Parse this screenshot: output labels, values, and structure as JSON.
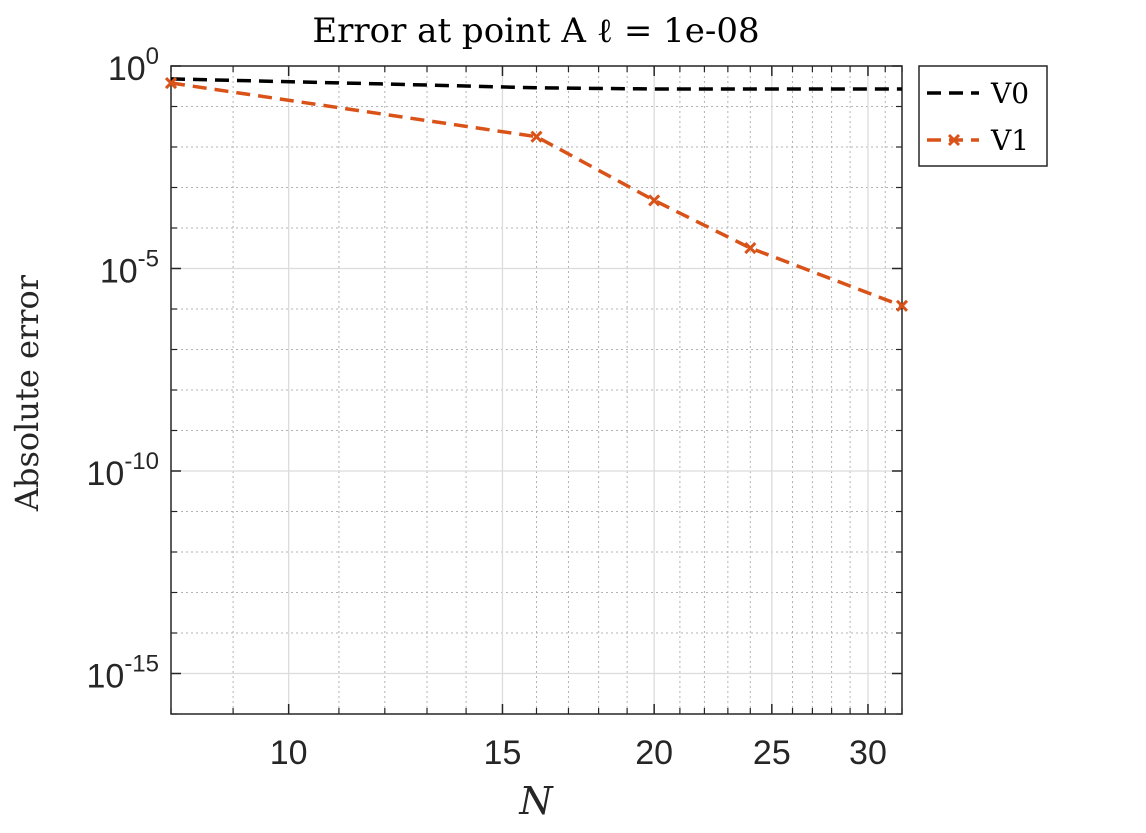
{
  "chart_data": {
    "type": "line",
    "title": "Error at point A ℓ = 1e-08",
    "xlabel": "N",
    "ylabel": "Absolute error",
    "x_scale": "log",
    "y_scale": "log",
    "xlim": [
      8,
      32
    ],
    "ylim": [
      1e-16,
      1
    ],
    "x_ticks": [
      10,
      15,
      20,
      25,
      30
    ],
    "x_tick_labels": [
      "10",
      "15",
      "20",
      "25",
      "30"
    ],
    "y_ticks": [
      {
        "base": "10",
        "exp": "0",
        "value": 1
      },
      {
        "base": "10",
        "exp": "-5",
        "value": 1e-05
      },
      {
        "base": "10",
        "exp": "-10",
        "value": 1e-10
      },
      {
        "base": "10",
        "exp": "-15",
        "value": 1e-15
      }
    ],
    "grid": true,
    "legend_position": "outside-top-right",
    "series": [
      {
        "name": "V0",
        "color": "#000000",
        "dash": "dashed",
        "marker": "none",
        "x": [
          8,
          12,
          16,
          20,
          24,
          28,
          32
        ],
        "y": [
          0.48,
          0.36,
          0.29,
          0.27,
          0.27,
          0.27,
          0.27
        ]
      },
      {
        "name": "V1",
        "color": "#d95319",
        "dash": "dashed",
        "marker": "x",
        "x": [
          8,
          16,
          20,
          24,
          32
        ],
        "y": [
          0.38,
          0.018,
          0.00048,
          3.2e-05,
          1.2e-06
        ]
      }
    ]
  }
}
